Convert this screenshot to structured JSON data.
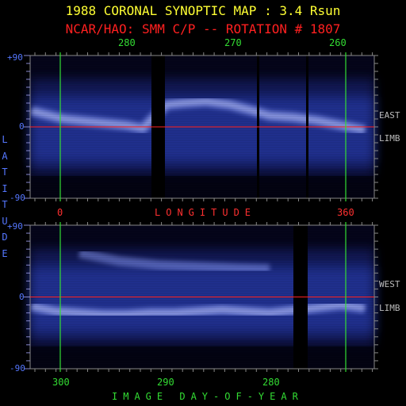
{
  "title": "1988 CORONAL SYNOPTIC MAP : 3.4 Rsun",
  "subtitle": "NCAR/HAO: SMM C/P -- ROTATION # 1807",
  "colors": {
    "title": "#ffff33",
    "subtitle": "#ff2020",
    "ticks_green": "#33dd33",
    "ticks_blue": "#5577ff",
    "equator": "#ff2020",
    "meridian": "#33dd33",
    "frame": "#888888"
  },
  "chart_data": [
    {
      "type": "heatmap",
      "panel": "east",
      "side_label_1": "EAST",
      "side_label_2": "LIMB",
      "top_axis": {
        "ticks": [
          "280",
          "270",
          "260"
        ]
      },
      "y_axis": {
        "ticks": [
          "+90",
          "0",
          "-90"
        ],
        "ylim": [
          -90,
          90
        ]
      },
      "bottom_axis": {
        "ticks": [
          "0",
          "360"
        ],
        "label": "LONGITUDE"
      },
      "data_gaps_x": [
        [
          191,
          208
        ],
        [
          324,
          327
        ],
        [
          386,
          389
        ]
      ],
      "streamer_belt": [
        [
          40,
          20
        ],
        [
          60,
          15
        ],
        [
          80,
          10
        ],
        [
          100,
          8
        ],
        [
          120,
          6
        ],
        [
          140,
          4
        ],
        [
          160,
          2
        ],
        [
          180,
          -2
        ],
        [
          210,
          28
        ],
        [
          230,
          30
        ],
        [
          260,
          32
        ],
        [
          290,
          28
        ],
        [
          320,
          20
        ],
        [
          340,
          14
        ],
        [
          370,
          12
        ],
        [
          400,
          8
        ],
        [
          430,
          2
        ],
        [
          460,
          -4
        ]
      ]
    },
    {
      "type": "heatmap",
      "panel": "west",
      "side_label_1": "WEST",
      "side_label_2": "LIMB",
      "y_axis": {
        "ticks": [
          "+90",
          "0",
          "-90"
        ],
        "ylim": [
          -90,
          90
        ]
      },
      "bottom_axis": {
        "ticks": [
          "300",
          "290",
          "280"
        ],
        "label": "IMAGE DAY-OF-YEAR"
      },
      "data_gaps_x": [
        [
          370,
          388
        ]
      ],
      "streamer_belt": [
        [
          40,
          -12
        ],
        [
          70,
          -18
        ],
        [
          100,
          -20
        ],
        [
          130,
          -22
        ],
        [
          160,
          -22
        ],
        [
          190,
          -20
        ],
        [
          220,
          -20
        ],
        [
          250,
          -18
        ],
        [
          280,
          -16
        ],
        [
          310,
          -18
        ],
        [
          340,
          -20
        ],
        [
          395,
          -14
        ],
        [
          430,
          -10
        ],
        [
          460,
          -14
        ]
      ],
      "upper_arc": [
        [
          100,
          55
        ],
        [
          150,
          45
        ],
        [
          200,
          40
        ],
        [
          250,
          38
        ],
        [
          300,
          36
        ],
        [
          340,
          35
        ]
      ]
    }
  ],
  "axis_label_vertical": "LATITUDE"
}
